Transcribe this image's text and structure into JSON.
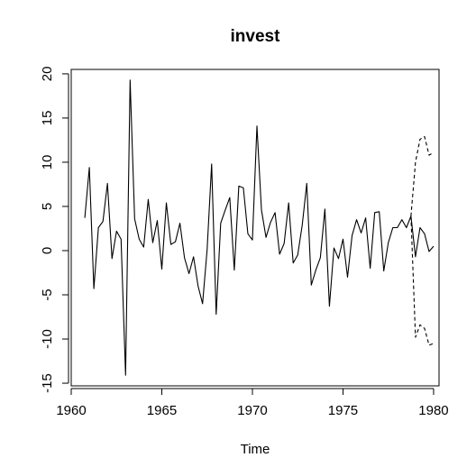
{
  "chart_data": {
    "type": "line",
    "title": "invest",
    "xlabel": "Time",
    "ylabel": "",
    "xlim": [
      1960,
      1980.3
    ],
    "ylim": [
      -15.3,
      20.5
    ],
    "x_ticks": [
      1960,
      1965,
      1970,
      1975,
      1980
    ],
    "x_tick_labels": [
      "1960",
      "1965",
      "1970",
      "1975",
      "1980"
    ],
    "y_ticks": [
      -15,
      -10,
      -5,
      0,
      5,
      10,
      15,
      20
    ],
    "y_tick_labels": [
      "-15",
      "-10",
      "-5",
      "0",
      "5",
      "10",
      "15",
      "20"
    ],
    "grid": false,
    "legend": "none",
    "colors": {
      "line": "#000000",
      "axis": "#000000",
      "background": "#ffffff"
    },
    "series": [
      {
        "style": "solid",
        "x": [
          1960.75,
          1961,
          1961.25,
          1961.5,
          1961.75,
          1962,
          1962.25,
          1962.5,
          1962.75,
          1963,
          1963.25,
          1963.5,
          1963.75,
          1964,
          1964.25,
          1964.5,
          1964.75,
          1965,
          1965.25,
          1965.5,
          1965.75,
          1966,
          1966.25,
          1966.5,
          1966.75,
          1967,
          1967.25,
          1967.5,
          1967.75,
          1968,
          1968.25,
          1968.5,
          1968.75,
          1969,
          1969.25,
          1969.5,
          1969.75,
          1970,
          1970.25,
          1970.5,
          1970.75,
          1971,
          1971.25,
          1971.5,
          1971.75,
          1972,
          1972.25,
          1972.5,
          1972.75,
          1973,
          1973.25,
          1973.5,
          1973.75,
          1974,
          1974.25,
          1974.5,
          1974.75,
          1975,
          1975.25,
          1975.5,
          1975.75,
          1976,
          1976.25,
          1976.5,
          1976.75,
          1977,
          1977.25,
          1977.5,
          1977.75,
          1978,
          1978.25,
          1978.5,
          1978.75,
          1979,
          1979.25,
          1979.5,
          1979.75,
          1980
        ],
        "values": [
          3.7,
          9.4,
          -4.3,
          2.6,
          3.3,
          7.6,
          -0.9,
          2.2,
          1.3,
          -14.1,
          19.3,
          3.6,
          1.3,
          0.4,
          5.8,
          0.9,
          3.4,
          -2.1,
          5.4,
          0.7,
          1.0,
          3.1,
          -0.8,
          -2.6,
          -0.7,
          -4.0,
          -6.0,
          0.1,
          9.8,
          -7.2,
          3.1,
          4.6,
          6.0,
          -2.2,
          7.3,
          7.1,
          1.9,
          1.2,
          14.1,
          4.6,
          1.5,
          3.2,
          4.3,
          -0.4,
          0.8,
          5.4,
          -1.4,
          -0.5,
          2.9,
          7.6,
          -3.9,
          -2.2,
          -0.8,
          4.7,
          -6.3,
          0.3,
          -0.9,
          1.3,
          -3.0,
          1.7,
          3.5,
          2.0,
          3.7,
          -2.0,
          4.3,
          4.4,
          -2.3,
          0.9,
          2.6,
          2.6,
          3.5,
          2.6,
          3.9,
          -0.7,
          2.6,
          1.9,
          -0.1,
          0.5
        ]
      },
      {
        "style": "dashed",
        "x": [
          1978.75,
          1979,
          1979.25,
          1979.5,
          1979.75,
          1980
        ],
        "values": [
          3.9,
          10.0,
          12.6,
          12.9,
          10.8,
          11.1
        ]
      },
      {
        "style": "dashed",
        "x": [
          1978.75,
          1979,
          1979.25,
          1979.5,
          1979.75,
          1980
        ],
        "values": [
          3.9,
          -9.8,
          -8.4,
          -8.8,
          -10.7,
          -10.5
        ]
      }
    ]
  }
}
